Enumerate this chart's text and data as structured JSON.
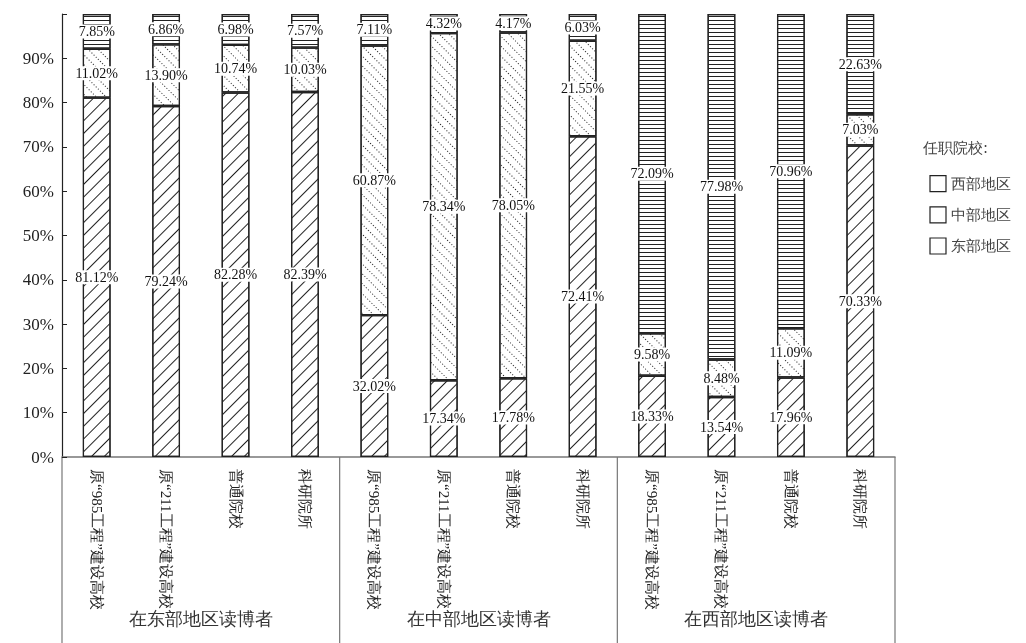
{
  "chart_data": {
    "type": "bar",
    "stacked": true,
    "categories": [
      "原“985工程”建设高校",
      "原“211工程”建设高校",
      "普通院校",
      "科研院所",
      "原“985工程”建设高校",
      "原“211工程”建设高校",
      "普通院校",
      "科研院所",
      "原“985工程”建设高校",
      "原“211工程”建设高校",
      "普通院校",
      "科研院所"
    ],
    "series": [
      {
        "name": "东部地区",
        "color": "#ffffff",
        "values": [
          81.12,
          79.24,
          82.28,
          82.39,
          32.02,
          17.34,
          17.78,
          72.41,
          18.33,
          13.54,
          17.96,
          70.33
        ],
        "value_labels": [
          "81.12%",
          "79.24%",
          "82.28%",
          "82.39%",
          "32.02%",
          "17.34%",
          "17.78%",
          "72.41%",
          "18.33%",
          "13.54%",
          "17.96%",
          "70.33%"
        ]
      },
      {
        "name": "中部地区",
        "color": "#ffffff",
        "values": [
          11.02,
          13.9,
          10.74,
          10.03,
          60.87,
          78.34,
          78.05,
          21.55,
          9.58,
          8.48,
          11.09,
          7.03
        ],
        "value_labels": [
          "11.02%",
          "13.90%",
          "10.74%",
          "10.03%",
          "60.87%",
          "78.34%",
          "78.05%",
          "21.55%",
          "9.58%",
          "8.48%",
          "11.09%",
          "7.03%"
        ]
      },
      {
        "name": "西部地区",
        "color": "#ffffff",
        "values": [
          7.85,
          6.86,
          6.98,
          7.57,
          7.11,
          4.32,
          4.17,
          6.03,
          72.09,
          77.98,
          70.96,
          22.63
        ],
        "value_labels": [
          "7.85%",
          "6.86%",
          "6.98%",
          "7.57%",
          "7.11%",
          "4.32%",
          "4.17%",
          "6.03%",
          "72.09%",
          "77.98%",
          "70.96%",
          "22.63%"
        ]
      }
    ],
    "ylim": [
      0,
      100
    ],
    "yticks": [
      {
        "value": 0,
        "label": "0%"
      },
      {
        "value": 10,
        "label": "10%"
      },
      {
        "value": 20,
        "label": "20%"
      },
      {
        "value": 30,
        "label": "30%"
      },
      {
        "value": 40,
        "label": "40%"
      },
      {
        "value": 50,
        "label": "50%"
      },
      {
        "value": 60,
        "label": "60%"
      },
      {
        "value": 70,
        "label": "70%"
      },
      {
        "value": 80,
        "label": "80%"
      },
      {
        "value": 90,
        "label": "90%"
      },
      {
        "value": 100,
        "label": null
      }
    ],
    "legend": "right",
    "legend_title": "任职院校:",
    "grid": false,
    "annotations": [
      "在东部地区读博者",
      "在中部地区读博者",
      "在西部地区读博者"
    ]
  }
}
